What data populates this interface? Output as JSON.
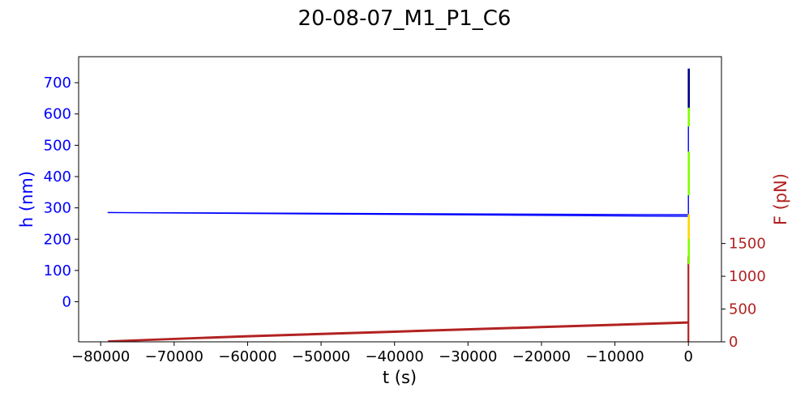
{
  "chart_data": {
    "type": "line",
    "title": "20-08-07_M1_P1_C6",
    "xlabel": "t (s)",
    "ylabel_left": "h (nm)",
    "ylabel_right": "F (pN)",
    "xlim": [
      -83000,
      4500
    ],
    "ylim_left": [
      -128,
      783
    ],
    "ylim_right": [
      0,
      4350
    ],
    "x_ticks": [
      -80000,
      -70000,
      -60000,
      -50000,
      -40000,
      -30000,
      -20000,
      -10000,
      0
    ],
    "x_tick_labels": [
      "−80000",
      "−70000",
      "−60000",
      "−50000",
      "−40000",
      "−30000",
      "−20000",
      "−10000",
      "0"
    ],
    "y_left_ticks": [
      0,
      100,
      200,
      300,
      400,
      500,
      600,
      700
    ],
    "y_left_tick_labels": [
      "0",
      "100",
      "200",
      "300",
      "400",
      "500",
      "600",
      "700"
    ],
    "y_right_ticks": [
      0,
      500,
      1000,
      1500
    ],
    "y_right_tick_labels": [
      "0",
      "500",
      "1000",
      "1500"
    ],
    "grid": false,
    "colors": {
      "h": "#0000ff",
      "F": "#b22222",
      "segment_green": "#7fff00",
      "segment_yellow": "#ffd700",
      "segment_navy": "#00008b",
      "left_axis_text": "#0000ff",
      "right_axis_text": "#b22222"
    },
    "series": [
      {
        "axis": "left",
        "color": "#0000ff",
        "x": [
          -79000,
          0,
          -79000,
          0
        ],
        "y": [
          285,
          273,
          285,
          278
        ]
      },
      {
        "axis": "left",
        "color": "#0000ff",
        "x": [
          0,
          0
        ],
        "y": [
          10,
          740
        ]
      },
      {
        "axis": "right",
        "color": "#b22222",
        "x": [
          -79000,
          -60000,
          -40000,
          -20000,
          0
        ],
        "y": [
          10,
          90,
          160,
          230,
          300
        ]
      },
      {
        "axis": "right",
        "color": "#b22222",
        "x": [
          -79000,
          -60000,
          -40000,
          -20000,
          0
        ],
        "y": [
          5,
          80,
          150,
          220,
          290
        ]
      },
      {
        "axis": "right",
        "color": "#b22222",
        "x": [
          0,
          0
        ],
        "y": [
          0,
          1300
        ]
      }
    ],
    "highlight_segments": [
      {
        "color": "#7fff00",
        "x": 0,
        "y": [
          120,
          260
        ]
      },
      {
        "color": "#ffd700",
        "x": 0,
        "y": [
          200,
          280
        ]
      },
      {
        "color": "#7fff00",
        "x": 0,
        "y": [
          340,
          480
        ]
      },
      {
        "color": "#7fff00",
        "x": 0,
        "y": [
          560,
          720
        ]
      },
      {
        "color": "#00008b",
        "x": 0,
        "y": [
          620,
          745
        ]
      }
    ]
  }
}
